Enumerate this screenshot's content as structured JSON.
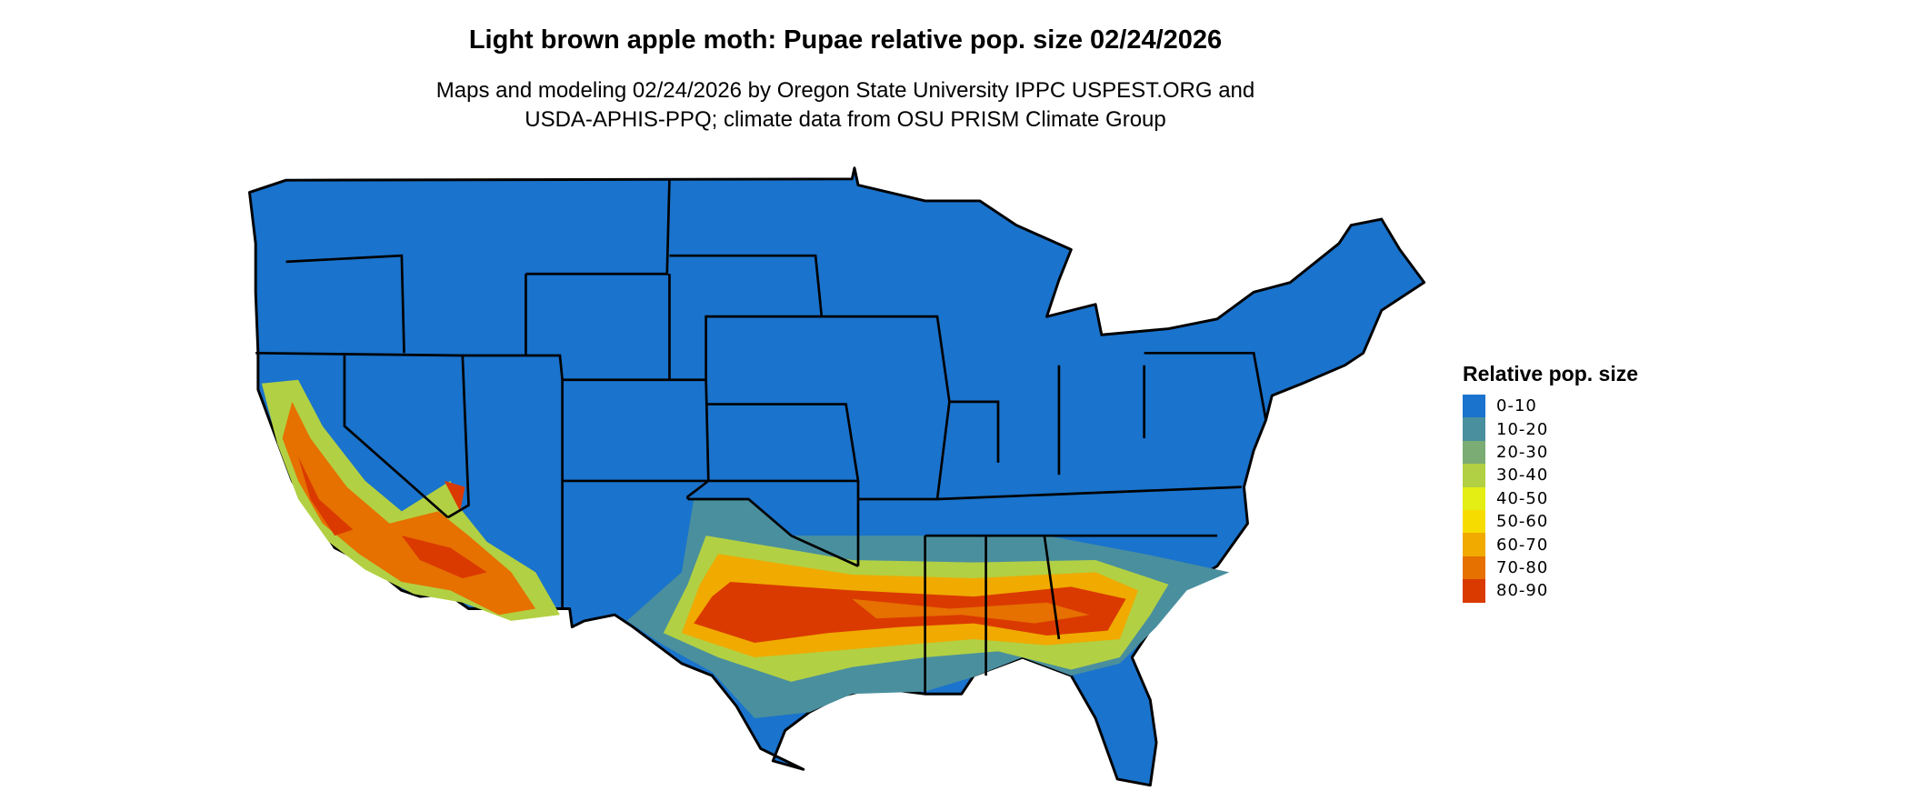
{
  "title": "Light brown apple moth: Pupae relative pop. size 02/24/2026",
  "subtitle_lines": [
    "Maps and modeling 02/24/2026 by Oregon State University IPPC USPEST.ORG and",
    "USDA-APHIS-PPQ; climate data from OSU PRISM Climate Group"
  ],
  "legend": {
    "title": "Relative pop. size",
    "items": [
      {
        "label": "0-10",
        "color": "#1a73cc"
      },
      {
        "label": "10-20",
        "color": "#4a8f9e"
      },
      {
        "label": "20-30",
        "color": "#7aac73"
      },
      {
        "label": "30-40",
        "color": "#b2d043"
      },
      {
        "label": "40-50",
        "color": "#e4ee14"
      },
      {
        "label": "50-60",
        "color": "#f7dc00"
      },
      {
        "label": "60-70",
        "color": "#f0aa00"
      },
      {
        "label": "70-80",
        "color": "#e67000"
      },
      {
        "label": "80-90",
        "color": "#da3a00"
      }
    ]
  },
  "map": {
    "region": "Contiguous United States",
    "background_class_color": "#1a73cc"
  }
}
